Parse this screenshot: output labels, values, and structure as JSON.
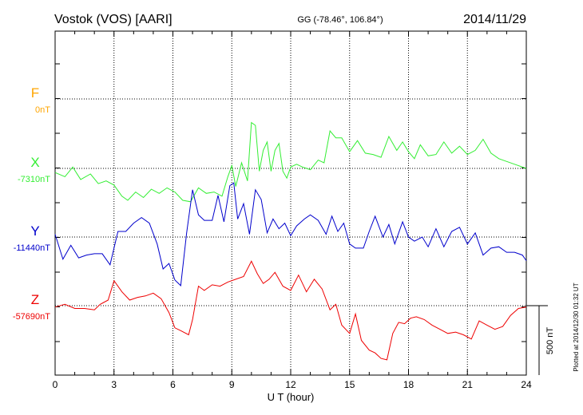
{
  "header": {
    "station": "Vostok (VOS)  [AARI]",
    "coords": "GG (-78.46°, 106.84°)",
    "date": "2014/11/29"
  },
  "footer": {
    "xlabel": "U T (hour)",
    "plotted": "Plotted at 2014/12/30 01:32 UT",
    "scale_label": "500 nT"
  },
  "chart_data": {
    "type": "line",
    "xlabel": "U T (hour)",
    "xlim": [
      0,
      24
    ],
    "x_ticks": [
      0,
      3,
      6,
      9,
      12,
      15,
      18,
      21,
      24
    ],
    "grid": true,
    "scale_bar_nT": 500,
    "series": [
      {
        "name": "F",
        "baseline": "0nT",
        "color": "#ffa500",
        "x": [],
        "values": []
      },
      {
        "name": "X",
        "baseline": "-7310nT",
        "color": "#33ee33",
        "x": [
          0,
          0.5,
          0.9,
          1.3,
          1.8,
          2.2,
          2.6,
          3.0,
          3.4,
          3.7,
          4.1,
          4.5,
          4.9,
          5.3,
          5.7,
          6.1,
          6.5,
          6.9,
          7.3,
          7.7,
          8.1,
          8.5,
          8.8,
          9.0,
          9.2,
          9.5,
          9.8,
          10.0,
          10.2,
          10.4,
          10.6,
          10.8,
          11.0,
          11.2,
          11.4,
          11.6,
          11.8,
          12.0,
          12.3,
          12.6,
          13.0,
          13.4,
          13.7,
          14.0,
          14.3,
          14.6,
          15.0,
          15.4,
          15.8,
          16.2,
          16.6,
          17.0,
          17.4,
          17.7,
          18.0,
          18.3,
          18.6,
          19.0,
          19.4,
          19.8,
          20.2,
          20.6,
          21.0,
          21.4,
          21.8,
          22.2,
          22.6,
          23.0,
          23.4,
          24.0
        ],
        "values": [
          -30,
          -60,
          10,
          -80,
          -40,
          -110,
          -90,
          -120,
          -200,
          -230,
          -170,
          -210,
          -150,
          -180,
          -140,
          -170,
          -230,
          -240,
          -140,
          -180,
          -170,
          -200,
          -60,
          20,
          -130,
          40,
          -90,
          330,
          310,
          -20,
          130,
          190,
          -20,
          130,
          180,
          -20,
          -70,
          10,
          30,
          10,
          -10,
          60,
          40,
          270,
          220,
          220,
          120,
          200,
          110,
          100,
          80,
          230,
          130,
          190,
          120,
          70,
          170,
          90,
          100,
          190,
          110,
          160,
          100,
          130,
          210,
          110,
          70,
          50,
          30,
          0
        ]
      },
      {
        "name": "Y",
        "baseline": "-11440nT",
        "color": "#0000cc",
        "x": [
          0,
          0.4,
          0.8,
          1.2,
          1.6,
          2.0,
          2.4,
          2.8,
          3.2,
          3.6,
          4.0,
          4.4,
          4.8,
          5.2,
          5.5,
          5.8,
          6.1,
          6.4,
          6.7,
          7.0,
          7.3,
          7.6,
          8.0,
          8.3,
          8.6,
          8.9,
          9.1,
          9.3,
          9.6,
          9.9,
          10.2,
          10.5,
          10.8,
          11.1,
          11.4,
          11.7,
          12.0,
          12.3,
          12.7,
          13.0,
          13.4,
          13.8,
          14.1,
          14.4,
          14.7,
          15.0,
          15.3,
          15.7,
          16.0,
          16.3,
          16.7,
          17.0,
          17.3,
          17.7,
          18.0,
          18.3,
          18.7,
          19.0,
          19.4,
          19.8,
          20.2,
          20.6,
          21.0,
          21.4,
          21.8,
          22.2,
          22.6,
          23.0,
          23.4,
          23.8,
          24.0
        ],
        "values": [
          20,
          -160,
          -60,
          -150,
          -130,
          -120,
          -120,
          -200,
          40,
          40,
          100,
          140,
          100,
          -50,
          -230,
          -190,
          -310,
          -350,
          30,
          340,
          160,
          120,
          120,
          300,
          110,
          370,
          390,
          130,
          240,
          20,
          340,
          270,
          30,
          130,
          60,
          100,
          10,
          80,
          130,
          160,
          120,
          20,
          150,
          40,
          100,
          -50,
          -80,
          -80,
          40,
          150,
          0,
          90,
          -50,
          110,
          0,
          -30,
          0,
          -70,
          60,
          -70,
          40,
          70,
          -50,
          30,
          -130,
          -80,
          -70,
          -110,
          -110,
          -130,
          -170
        ]
      },
      {
        "name": "Z",
        "baseline": "-57690nT",
        "color": "#ee0000",
        "x": [
          0,
          0.5,
          1.0,
          1.5,
          2.0,
          2.3,
          2.7,
          3.0,
          3.4,
          3.8,
          4.2,
          4.6,
          5.0,
          5.4,
          5.8,
          6.1,
          6.4,
          6.8,
          7.0,
          7.3,
          7.6,
          8.0,
          8.4,
          8.8,
          9.2,
          9.6,
          10.0,
          10.3,
          10.6,
          10.9,
          11.2,
          11.6,
          12.0,
          12.4,
          12.8,
          13.2,
          13.6,
          14.0,
          14.3,
          14.6,
          15.0,
          15.3,
          15.6,
          16.0,
          16.3,
          16.6,
          16.9,
          17.2,
          17.5,
          17.8,
          18.1,
          18.4,
          18.8,
          19.2,
          19.6,
          20.0,
          20.4,
          20.8,
          21.2,
          21.6,
          22.0,
          22.4,
          22.8,
          23.2,
          23.6,
          24.0
        ],
        "values": [
          -10,
          10,
          -20,
          -20,
          -30,
          10,
          40,
          180,
          100,
          40,
          60,
          70,
          90,
          50,
          -50,
          -160,
          -180,
          -210,
          -100,
          140,
          110,
          150,
          140,
          170,
          190,
          210,
          320,
          230,
          160,
          190,
          240,
          140,
          110,
          220,
          100,
          190,
          120,
          -30,
          10,
          -140,
          -200,
          -60,
          -250,
          -320,
          -340,
          -380,
          -390,
          -200,
          -120,
          -130,
          -90,
          -80,
          -100,
          -140,
          -170,
          -200,
          -190,
          -210,
          -240,
          -110,
          -140,
          -170,
          -150,
          -70,
          -20,
          -10
        ]
      }
    ]
  }
}
